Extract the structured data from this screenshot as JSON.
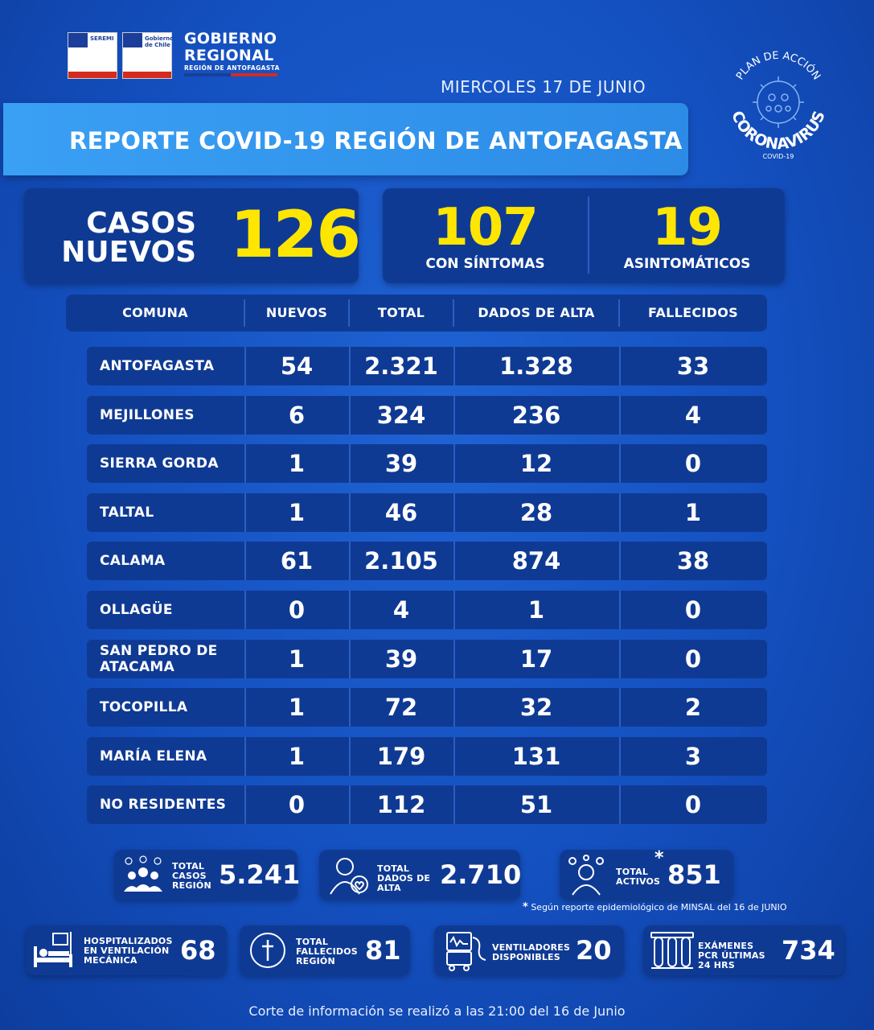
{
  "header": {
    "logo1_text": "SEREMI",
    "logo2_text": "Gobierno de Chile",
    "gob_line1": "GOBIERNO",
    "gob_line2": "REGIONAL",
    "gob_line3": "REGIÓN DE ANTOFAGASTA",
    "date": "MIERCOLES 17 DE JUNIO",
    "title": "REPORTE COVID-19 REGIÓN DE ANTOFAGASTA",
    "badge_top": "PLAN DE ACCIÓN",
    "badge_main": "CORONAVIRUS",
    "badge_sub": "COVID-19"
  },
  "summary": {
    "casos_line1": "CASOS",
    "casos_line2": "NUEVOS",
    "casos_value": "126",
    "sintomas_value": "107",
    "sintomas_label": "CON SÍNTOMAS",
    "asint_value": "19",
    "asint_label": "ASINTOMÁTICOS"
  },
  "table": {
    "headers": [
      "COMUNA",
      "NUEVOS",
      "TOTAL",
      "DADOS DE ALTA",
      "FALLECIDOS"
    ],
    "rows": [
      {
        "comuna": "ANTOFAGASTA",
        "nuevos": "54",
        "total": "2.321",
        "alta": "1.328",
        "fallecidos": "33"
      },
      {
        "comuna": "MEJILLONES",
        "nuevos": "6",
        "total": "324",
        "alta": "236",
        "fallecidos": "4"
      },
      {
        "comuna": "SIERRA GORDA",
        "nuevos": "1",
        "total": "39",
        "alta": "12",
        "fallecidos": "0"
      },
      {
        "comuna": "TALTAL",
        "nuevos": "1",
        "total": "46",
        "alta": "28",
        "fallecidos": "1"
      },
      {
        "comuna": "CALAMA",
        "nuevos": "61",
        "total": "2.105",
        "alta": "874",
        "fallecidos": "38"
      },
      {
        "comuna": "OLLAGÜE",
        "nuevos": "0",
        "total": "4",
        "alta": "1",
        "fallecidos": "0"
      },
      {
        "comuna": "SAN PEDRO DE ATACAMA",
        "nuevos": "1",
        "total": "39",
        "alta": "17",
        "fallecidos": "0"
      },
      {
        "comuna": "TOCOPILLA",
        "nuevos": "1",
        "total": "72",
        "alta": "32",
        "fallecidos": "2"
      },
      {
        "comuna": "MARÍA ELENA",
        "nuevos": "1",
        "total": "179",
        "alta": "131",
        "fallecidos": "3"
      },
      {
        "comuna": "NO RESIDENTES",
        "nuevos": "0",
        "total": "112",
        "alta": "51",
        "fallecidos": "0"
      }
    ]
  },
  "totals": {
    "casos_label": "TOTAL CASOS REGIÓN",
    "casos_value": "5.241",
    "alta_label": "TOTAL DADOS DE ALTA",
    "alta_value": "2.710",
    "activos_label": "TOTAL ACTIVOS",
    "activos_value": "851",
    "activos_mark": "*",
    "note": "Según reporte epidemiológico de MINSAL del 16 de JUNIO",
    "hosp_label": "HOSPITALIZADOS EN VENTILACIÓN MECÁNICA",
    "hosp_value": "68",
    "fallecidos_label": "TOTAL FALLECIDOS REGIÓN",
    "fallecidos_value": "81",
    "vent_label": "VENTILADORES DISPONIBLES",
    "vent_value": "20",
    "pcr_label": "EXÁMENES PCR ÚLTIMAS 24 HRS",
    "pcr_value": "734"
  },
  "footer": "Corte de información se realizó a las 21:00 del 16 de Junio",
  "colors": {
    "accent_yellow": "#ffe600",
    "panel": "#0f3a94",
    "title_bar": "#3aa0f4"
  }
}
